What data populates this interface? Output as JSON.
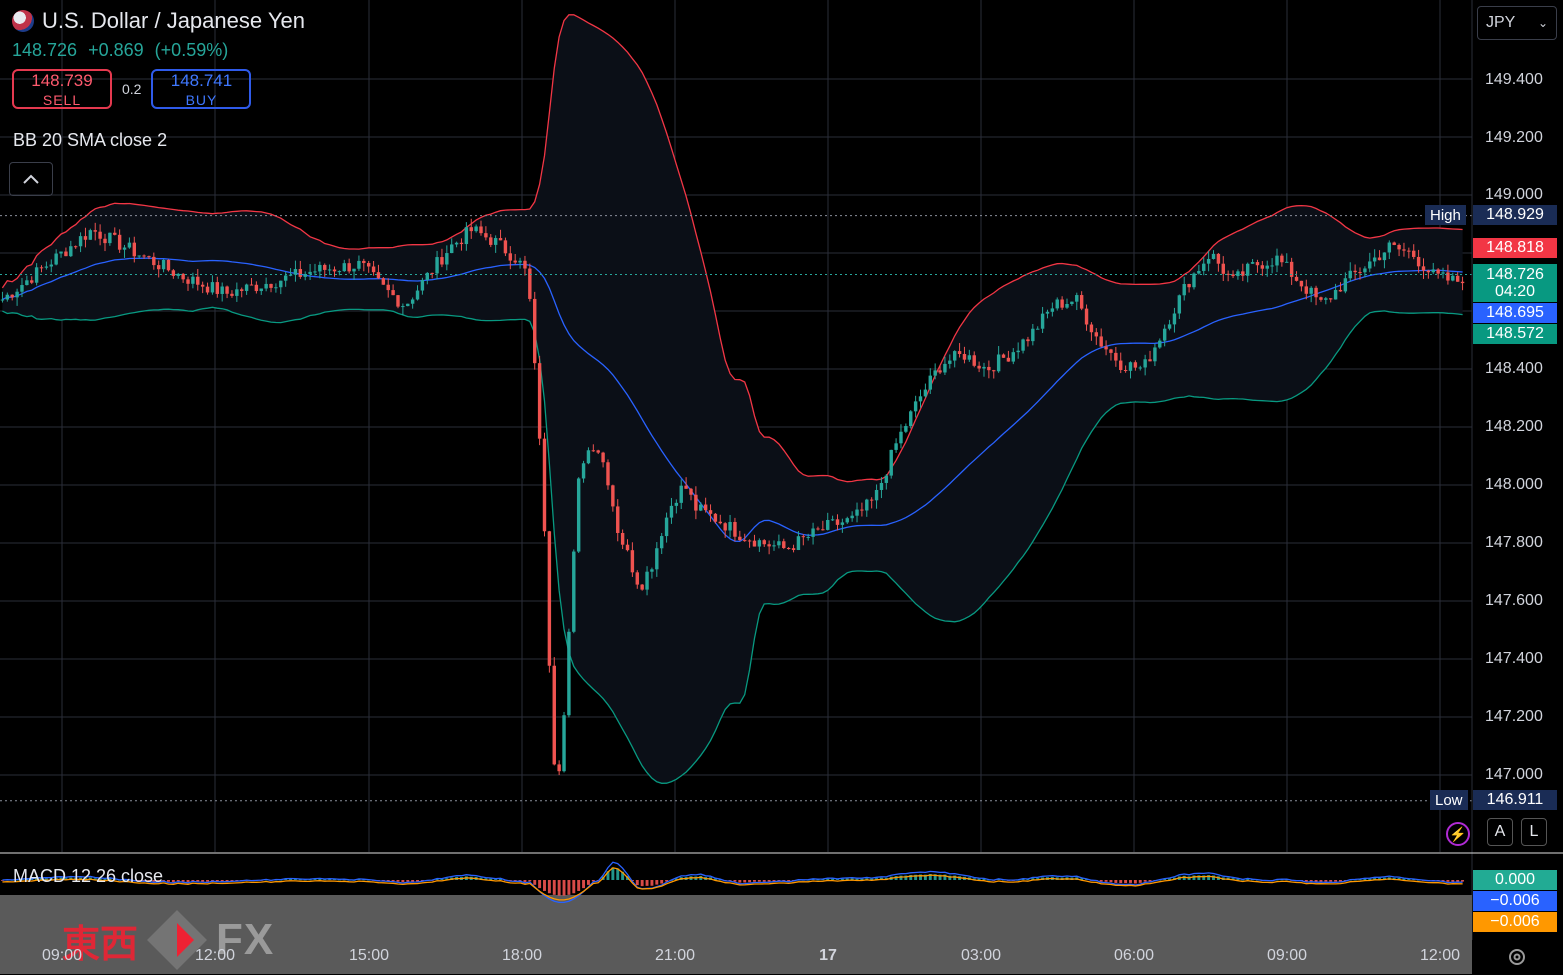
{
  "header": {
    "title": "U.S. Dollar / Japanese Yen",
    "last_price": "148.726",
    "change": "+0.869",
    "change_pct": "(+0.59%)",
    "sell_price": "148.739",
    "sell_label": "SELL",
    "spread": "0.2",
    "buy_price": "148.741",
    "buy_label": "BUY"
  },
  "indicators": {
    "bb_label": "BB 20 SMA close 2",
    "macd_label": "MACD 12 26 close"
  },
  "currency_select": {
    "value": "JPY"
  },
  "price_axis": {
    "ticks": [
      "149.400",
      "149.200",
      "149.000",
      "148.400",
      "148.200",
      "148.000",
      "147.800",
      "147.600",
      "147.400",
      "147.200",
      "147.000"
    ]
  },
  "price_tags": {
    "high_label": "High",
    "high_value": "148.929",
    "upper_band": "148.818",
    "last": "148.726",
    "countdown": "04:20",
    "middle_band": "148.695",
    "lower_band": "148.572",
    "low_label": "Low",
    "low_value": "146.911"
  },
  "macd_tags": {
    "hist": "0.000",
    "macd": "−0.006",
    "signal": "−0.006"
  },
  "time_axis": {
    "ticks": [
      "09:00",
      "12:00",
      "15:00",
      "18:00",
      "21:00",
      "17",
      "03:00",
      "06:00",
      "09:00",
      "12:00"
    ]
  },
  "scale_buttons": {
    "auto": "A",
    "log": "L"
  },
  "watermark": {
    "kanji": "東西",
    "fx": "FX"
  },
  "colors": {
    "up": "#26a69a",
    "down": "#ef5350",
    "upper": "#f23645",
    "basis": "#2962ff",
    "lower": "#089981",
    "macd": "#2962ff",
    "signal": "#ff9800",
    "sell": "#e5394f",
    "buy": "#2f5bea"
  },
  "chart_data": {
    "type": "candlestick",
    "symbol": "USDJPY",
    "ylim": [
      146.84,
      149.52
    ],
    "high": 148.929,
    "low": 146.911,
    "x_ticks": [
      "09:00",
      "12:00",
      "15:00",
      "18:00",
      "21:00",
      "17",
      "03:00",
      "06:00",
      "09:00",
      "12:00"
    ],
    "close_path": [
      [
        0,
        148.64
      ],
      [
        4,
        148.76
      ],
      [
        8,
        148.88
      ],
      [
        12,
        148.8
      ],
      [
        16,
        148.72
      ],
      [
        20,
        148.66
      ],
      [
        24,
        148.7
      ],
      [
        28,
        148.74
      ],
      [
        32,
        148.76
      ],
      [
        34,
        148.68
      ],
      [
        36,
        148.62
      ],
      [
        38,
        148.72
      ],
      [
        40,
        148.82
      ],
      [
        42,
        148.88
      ],
      [
        44,
        148.84
      ],
      [
        46,
        148.78
      ],
      [
        47,
        148.72
      ],
      [
        47.5,
        148.45
      ],
      [
        48,
        148.2
      ],
      [
        48.5,
        147.8
      ],
      [
        49,
        147.3
      ],
      [
        49.5,
        146.95
      ],
      [
        50,
        147.1
      ],
      [
        50.5,
        147.4
      ],
      [
        51,
        147.7
      ],
      [
        51.5,
        148.0
      ],
      [
        52,
        148.1
      ],
      [
        53,
        148.15
      ],
      [
        54,
        148.05
      ],
      [
        55,
        147.85
      ],
      [
        56,
        147.75
      ],
      [
        57,
        147.65
      ],
      [
        58,
        147.72
      ],
      [
        59,
        147.85
      ],
      [
        60,
        147.95
      ],
      [
        61,
        148.0
      ],
      [
        62,
        147.92
      ],
      [
        64,
        147.88
      ],
      [
        66,
        147.83
      ],
      [
        68,
        147.8
      ],
      [
        70,
        147.78
      ],
      [
        72,
        147.82
      ],
      [
        74,
        147.86
      ],
      [
        76,
        147.88
      ],
      [
        78,
        147.95
      ],
      [
        80,
        148.15
      ],
      [
        82,
        148.3
      ],
      [
        84,
        148.42
      ],
      [
        86,
        148.45
      ],
      [
        88,
        148.4
      ],
      [
        90,
        148.45
      ],
      [
        92,
        148.52
      ],
      [
        94,
        148.62
      ],
      [
        96,
        148.64
      ],
      [
        98,
        148.5
      ],
      [
        100,
        148.42
      ],
      [
        102,
        148.4
      ],
      [
        104,
        148.55
      ],
      [
        106,
        148.7
      ],
      [
        108,
        148.8
      ],
      [
        110,
        148.7
      ],
      [
        112,
        148.76
      ],
      [
        114,
        148.78
      ],
      [
        116,
        148.7
      ],
      [
        118,
        148.62
      ],
      [
        120,
        148.7
      ],
      [
        122,
        148.76
      ],
      [
        124,
        148.82
      ],
      [
        126,
        148.8
      ],
      [
        128,
        148.72
      ],
      [
        130,
        148.7
      ],
      [
        131,
        148.73
      ]
    ]
  }
}
